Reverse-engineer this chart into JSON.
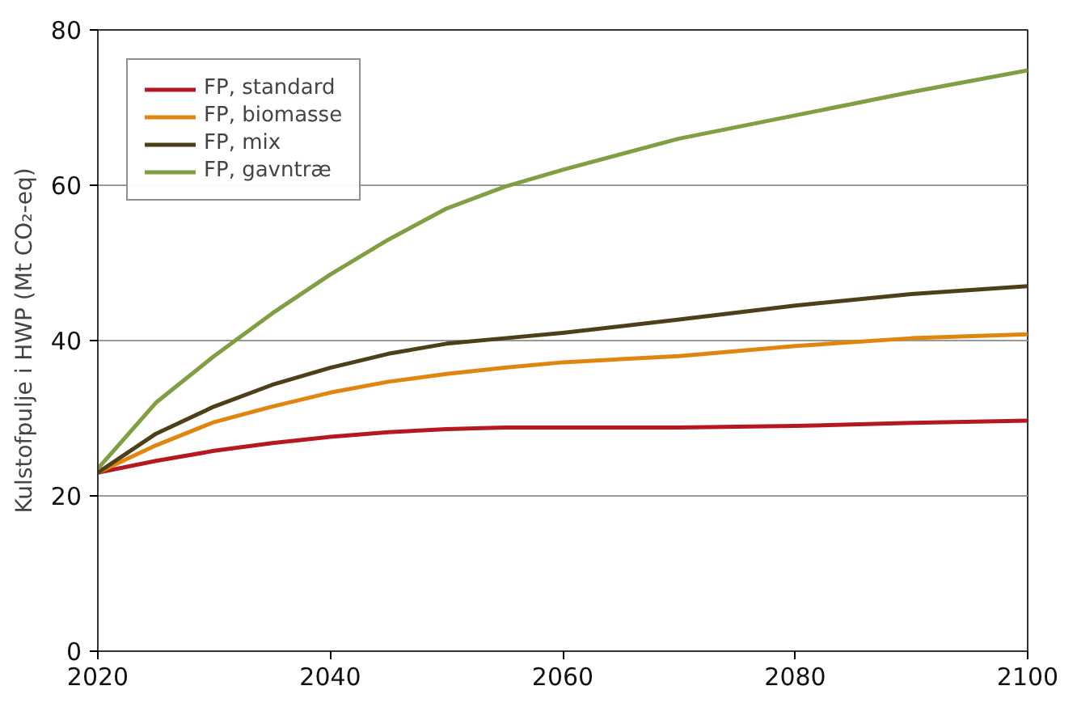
{
  "chart_data": {
    "type": "line",
    "ylabel": "Kulstofpulje i HWP (Mt CO₂-eq)",
    "x": [
      2020,
      2025,
      2030,
      2035,
      2040,
      2045,
      2050,
      2055,
      2060,
      2070,
      2080,
      2090,
      2100
    ],
    "series": [
      {
        "name": "FP, standard",
        "color": "#b5191f",
        "values": [
          23,
          24.5,
          25.8,
          26.8,
          27.6,
          28.2,
          28.6,
          28.8,
          28.8,
          28.8,
          29,
          29.4,
          29.7
        ]
      },
      {
        "name": "FP, biomasse",
        "color": "#e0860e",
        "values": [
          23,
          26.5,
          29.5,
          31.5,
          33.3,
          34.7,
          35.7,
          36.5,
          37.2,
          38,
          39.3,
          40.3,
          40.8
        ]
      },
      {
        "name": "FP, mix",
        "color": "#4d3f17",
        "values": [
          23,
          28,
          31.5,
          34.3,
          36.5,
          38.3,
          39.6,
          40.3,
          41,
          42.7,
          44.5,
          46,
          47
        ]
      },
      {
        "name": "FP, gavntræ",
        "color": "#7f9f42",
        "values": [
          23.5,
          32,
          38,
          43.5,
          48.5,
          53,
          57,
          59.8,
          62,
          66,
          69,
          72,
          74.8
        ]
      }
    ],
    "xlim": [
      2020,
      2100
    ],
    "xticks": [
      2020,
      2040,
      2060,
      2080,
      2100
    ],
    "ylim": [
      0,
      80
    ],
    "yticks": [
      0,
      20,
      40,
      60,
      80
    ],
    "grid": "y",
    "legend": "top left",
    "marker": "none",
    "line_style": "solid"
  }
}
